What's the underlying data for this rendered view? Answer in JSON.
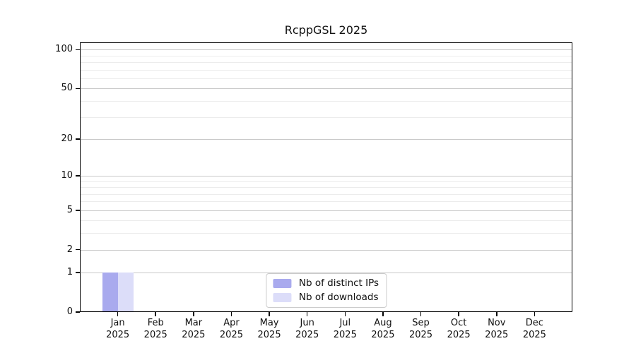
{
  "chart_data": {
    "type": "bar",
    "title": "RcppGSL 2025",
    "categories": [
      "Jan 2025",
      "Feb 2025",
      "Mar 2025",
      "Apr 2025",
      "May 2025",
      "Jun 2025",
      "Jul 2025",
      "Aug 2025",
      "Sep 2025",
      "Oct 2025",
      "Nov 2025",
      "Dec 2025"
    ],
    "x_tick_line1": [
      "Jan",
      "Feb",
      "Mar",
      "Apr",
      "May",
      "Jun",
      "Jul",
      "Aug",
      "Sep",
      "Oct",
      "Nov",
      "Dec"
    ],
    "x_tick_line2": "2025",
    "series": [
      {
        "name": "Nb of distinct IPs",
        "color": "#a9aaee",
        "values": [
          1,
          0,
          0,
          0,
          0,
          0,
          0,
          0,
          0,
          0,
          0,
          0
        ]
      },
      {
        "name": "Nb of downloads",
        "color": "#dcddf9",
        "values": [
          1,
          0,
          0,
          0,
          0,
          0,
          0,
          0,
          0,
          0,
          0,
          0
        ]
      }
    ],
    "xlabel": "",
    "ylabel": "",
    "yscale": "log1p",
    "ylim": [
      0,
      114
    ],
    "y_ticks": [
      0,
      1,
      2,
      5,
      10,
      20,
      50,
      100
    ],
    "y_minor_gridlines": [
      3,
      4,
      6,
      7,
      8,
      9,
      30,
      40,
      60,
      70,
      80,
      90
    ],
    "grid": true,
    "legend_position": "inside-bottom-center"
  },
  "colors": {
    "axis": "#000000",
    "major_gridline": "#c9c9c9",
    "minor_gridline": "#ececec",
    "legend_border": "#cccccc",
    "legend_background": "#ffffff",
    "text": "#111111"
  }
}
